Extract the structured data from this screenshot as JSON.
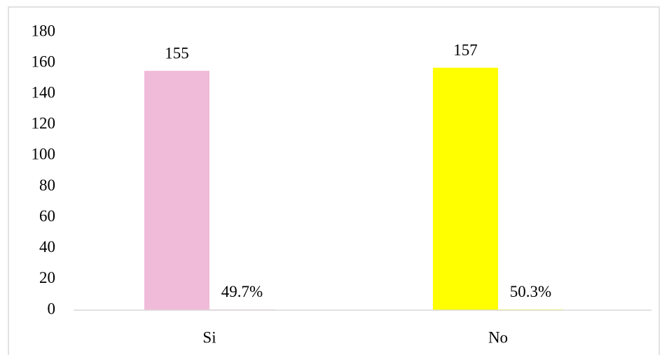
{
  "chart_data": {
    "type": "bar",
    "categories": [
      "Si",
      "No"
    ],
    "series": [
      {
        "colors": [
          "#f0bbd8",
          "#ffff00"
        ],
        "values": [
          155,
          157
        ]
      },
      {
        "colors": [
          "#f0bbd8",
          "#ffff00"
        ],
        "values": [
          0.497,
          0.503
        ],
        "value_labels": [
          "49.7%",
          "50.3%"
        ]
      }
    ],
    "ylim": [
      0,
      180
    ],
    "yticks": [
      0,
      20,
      40,
      60,
      80,
      100,
      120,
      140,
      160,
      180
    ],
    "grid": false
  }
}
